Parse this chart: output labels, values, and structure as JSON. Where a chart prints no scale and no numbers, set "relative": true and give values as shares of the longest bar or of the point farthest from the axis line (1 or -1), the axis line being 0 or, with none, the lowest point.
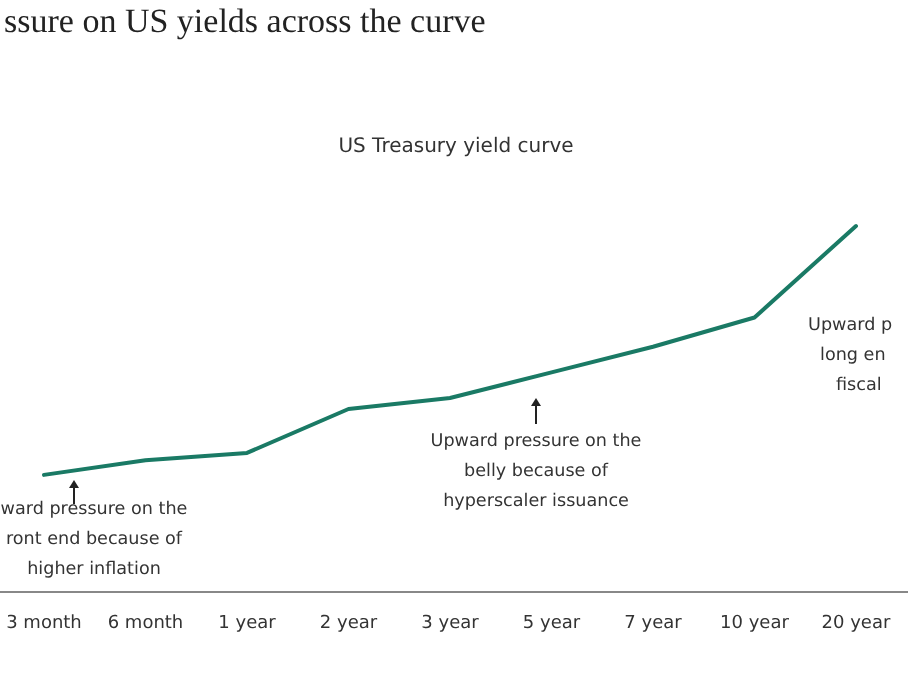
{
  "chart_data": {
    "type": "line",
    "title": "ssure on US yields across the curve",
    "subtitle": "US Treasury yield curve",
    "relative": true,
    "categories": [
      "3 month",
      "6 month",
      "1 year",
      "2 year",
      "3 year",
      "5 year",
      "7 year",
      "10 year",
      "20 year"
    ],
    "series": [
      {
        "color": "#1a7a65",
        "values": [
          0.32,
          0.36,
          0.38,
          0.5,
          0.53,
          0.6,
          0.67,
          0.75,
          1
        ]
      }
    ],
    "annotations": [
      "ward pressure on the\nront end because of\nhigher inflation",
      "Upward pressure on the\nbelly because of\nhyperscaler issuance",
      "Upward p\nlong en\nfiscal"
    ],
    "marker": "none",
    "line_style": "solid"
  }
}
